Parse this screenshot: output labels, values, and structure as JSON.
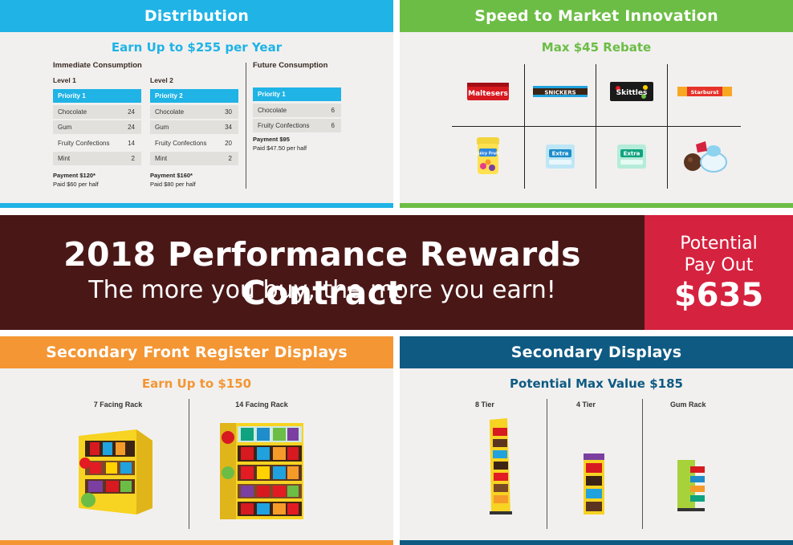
{
  "distribution": {
    "title": "Distribution",
    "subtitle": "Earn Up to $255 per Year",
    "immediate_title": "Immediate Consumption",
    "future_title": "Future Consumption",
    "level1": {
      "label": "Level 1",
      "header": "Priority 1",
      "rows": [
        {
          "name": "Chocolate",
          "value": "24"
        },
        {
          "name": "Gum",
          "value": "24"
        },
        {
          "name": "Fruity Confections",
          "value": "14"
        },
        {
          "name": "Mint",
          "value": "2"
        }
      ],
      "payment": "Payment $120*",
      "paid": "Paid $60 per half"
    },
    "level2": {
      "label": "Level 2",
      "header": "Priority 2",
      "rows": [
        {
          "name": "Chocolate",
          "value": "30"
        },
        {
          "name": "Gum",
          "value": "34"
        },
        {
          "name": "Fruity Confections",
          "value": "20"
        },
        {
          "name": "Mint",
          "value": "2"
        }
      ],
      "payment": "Payment $160*",
      "paid": "Paid $80 per half"
    },
    "future": {
      "header": "Priority 1",
      "rows": [
        {
          "name": "Chocolate",
          "value": "6"
        },
        {
          "name": "Fruity Confections",
          "value": "6"
        }
      ],
      "payment": "Payment $95",
      "paid": "Paid $47.50 per half"
    },
    "accent": "#1fb3e6"
  },
  "speed": {
    "title": "Speed to Market Innovation",
    "subtitle": "Max $45 Rebate",
    "products": [
      {
        "icon": "maltesers-box-icon",
        "text": "Maltesers"
      },
      {
        "icon": "snickers-bar-icon",
        "text": "SNICKERS"
      },
      {
        "icon": "skittles-pack-icon",
        "text": "Skittles"
      },
      {
        "icon": "starburst-pack-icon",
        "text": "Starburst"
      },
      {
        "icon": "juicy-fruit-jar-icon",
        "text": "Juicy Fruit"
      },
      {
        "icon": "extra-gum-pack-icon",
        "text": "Extra"
      },
      {
        "icon": "extra-chewy-mints-icon",
        "text": "Extra"
      },
      {
        "icon": "chocolate-mint-candies-icon",
        "text": ""
      }
    ],
    "accent": "#6cbd45"
  },
  "banner": {
    "title": "2018 Performance Rewards Contract",
    "subtitle": "The more you buy, the more you earn!",
    "bg": "#4a1717"
  },
  "payout": {
    "line1": "Potential",
    "line2": "Pay Out",
    "amount": "$635",
    "bg": "#d5223f"
  },
  "front": {
    "title": "Secondary Front Register Displays",
    "subtitle": "Earn Up to $150",
    "racks": [
      {
        "label": "7 Facing Rack",
        "icon": "seven-facing-rack-icon"
      },
      {
        "label": "14 Facing Rack",
        "icon": "fourteen-facing-rack-icon"
      }
    ],
    "accent": "#f39633"
  },
  "secondary": {
    "title": "Secondary Displays",
    "subtitle": "Potential Max Value $185",
    "displays": [
      {
        "label": "8 Tier",
        "icon": "eight-tier-display-icon"
      },
      {
        "label": "4 Tier",
        "icon": "four-tier-display-icon"
      },
      {
        "label": "Gum Rack",
        "icon": "gum-rack-icon"
      }
    ],
    "accent": "#0e5a82"
  }
}
